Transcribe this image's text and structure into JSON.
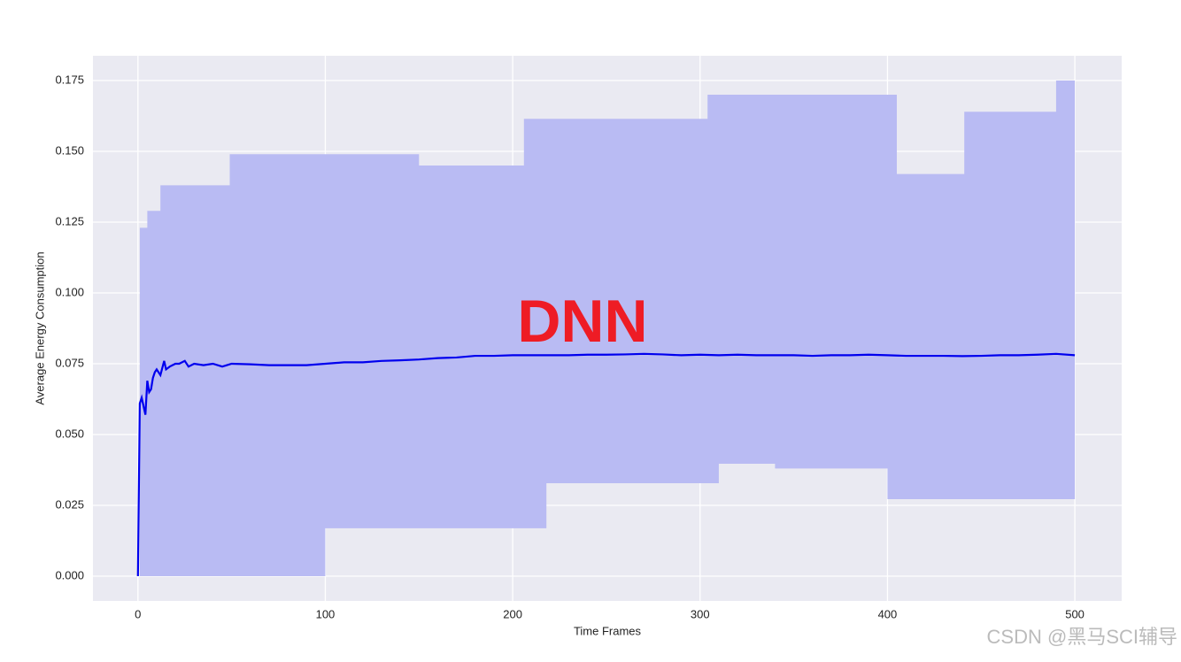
{
  "chart_data": {
    "type": "line_band",
    "ylabel": "Average Energy Consumption",
    "xlabel": "Time Frames",
    "annotation": "DNN",
    "watermark": "CSDN @黑马SCI辅导",
    "xlim": [
      -24,
      525
    ],
    "ylim": [
      -0.00875,
      0.18375
    ],
    "xticks": [
      0,
      100,
      200,
      300,
      400,
      500
    ],
    "yticks": [
      {
        "value": 0,
        "label": "0.000"
      },
      {
        "value": 0.025,
        "label": "0.025"
      },
      {
        "value": 0.05,
        "label": "0.050"
      },
      {
        "value": 0.075,
        "label": "0.075"
      },
      {
        "value": 0.1,
        "label": "0.100"
      },
      {
        "value": 0.125,
        "label": "0.125"
      },
      {
        "value": 0.15,
        "label": "0.150"
      },
      {
        "value": 0.175,
        "label": "0.175"
      }
    ],
    "grid": true,
    "x": [
      0,
      1,
      2,
      3,
      4,
      5,
      6,
      7,
      8,
      9,
      10,
      12,
      14,
      15,
      17,
      20,
      22,
      25,
      27,
      30,
      35,
      40,
      45,
      50,
      60,
      70,
      80,
      90,
      100,
      110,
      120,
      130,
      140,
      150,
      160,
      170,
      180,
      190,
      200,
      210,
      220,
      230,
      240,
      250,
      260,
      270,
      280,
      290,
      300,
      310,
      320,
      330,
      340,
      350,
      360,
      370,
      380,
      390,
      400,
      410,
      420,
      430,
      440,
      450,
      460,
      470,
      480,
      490,
      500
    ],
    "series": [
      {
        "color": "#0000ee",
        "values": [
          0,
          0.061,
          0.063,
          0.06,
          0.057,
          0.069,
          0.065,
          0.066,
          0.07,
          0.072,
          0.073,
          0.071,
          0.076,
          0.073,
          0.074,
          0.075,
          0.075,
          0.076,
          0.074,
          0.075,
          0.0745,
          0.075,
          0.074,
          0.075,
          0.0748,
          0.0745,
          0.0745,
          0.0745,
          0.075,
          0.0755,
          0.0755,
          0.076,
          0.0762,
          0.0765,
          0.077,
          0.0772,
          0.0778,
          0.0778,
          0.078,
          0.078,
          0.078,
          0.078,
          0.0782,
          0.0782,
          0.0783,
          0.0785,
          0.0783,
          0.078,
          0.0782,
          0.078,
          0.0782,
          0.078,
          0.078,
          0.078,
          0.0778,
          0.078,
          0.078,
          0.0782,
          0.078,
          0.0778,
          0.0778,
          0.0778,
          0.0777,
          0.0778,
          0.078,
          0.078,
          0.0782,
          0.0785,
          0.078
        ]
      }
    ],
    "band_color": "#b9bbf3",
    "upper": {
      "x": [
        1,
        5,
        12,
        49,
        150,
        206,
        304,
        405,
        441,
        490,
        500
      ],
      "values": [
        0.123,
        0.129,
        0.138,
        0.149,
        0.145,
        0.1615,
        0.17,
        0.142,
        0.164,
        0.175,
        0.175
      ]
    },
    "lower": {
      "x": [
        1,
        100,
        218,
        310,
        340,
        400,
        500
      ],
      "values": [
        0,
        0.0169,
        0.0328,
        0.0397,
        0.038,
        0.0272,
        0.0272
      ]
    }
  }
}
